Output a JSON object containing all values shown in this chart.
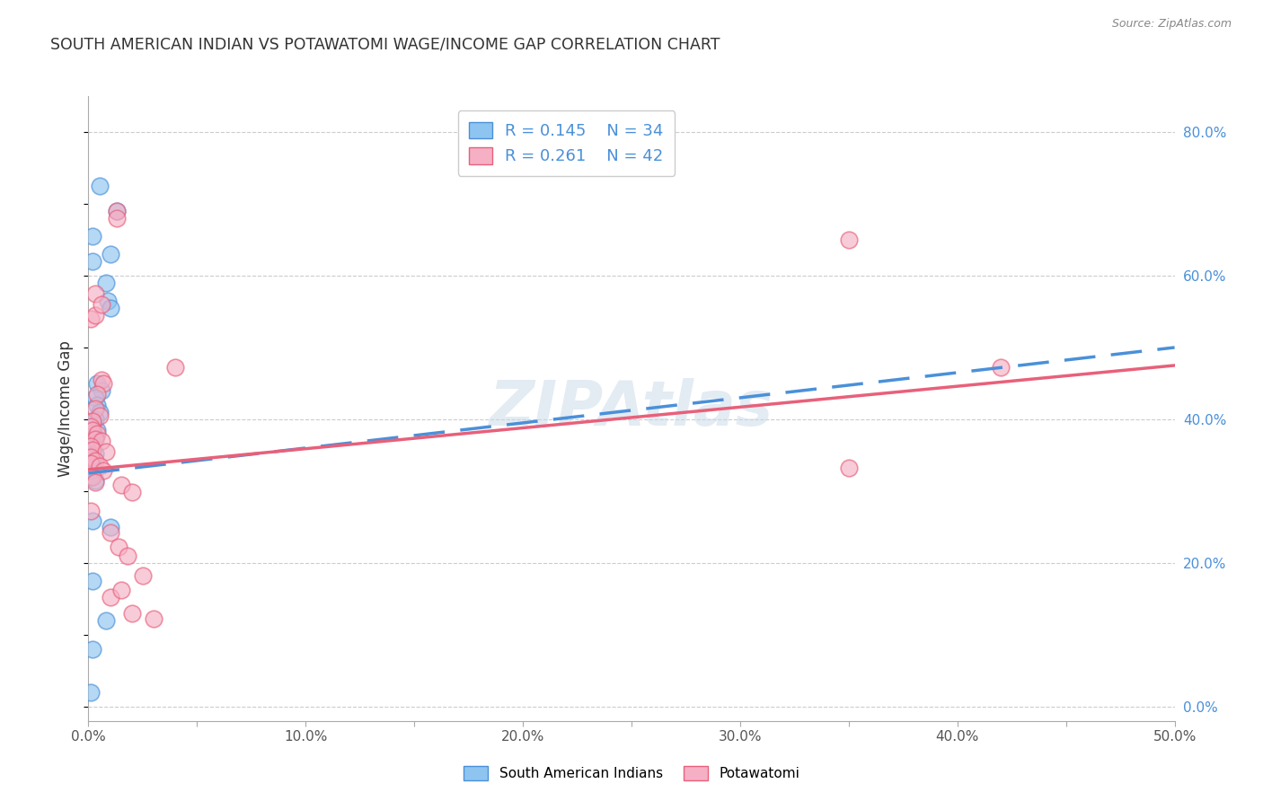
{
  "title": "SOUTH AMERICAN INDIAN VS POTAWATOMI WAGE/INCOME GAP CORRELATION CHART",
  "source": "Source: ZipAtlas.com",
  "ylabel": "Wage/Income Gap",
  "watermark": "ZIPAtlas",
  "blue_color": "#8ec4f0",
  "pink_color": "#f5b0c5",
  "blue_line_color": "#4a90d9",
  "pink_line_color": "#e8607a",
  "blue_scatter": [
    [
      0.002,
      0.655
    ],
    [
      0.005,
      0.725
    ],
    [
      0.01,
      0.63
    ],
    [
      0.013,
      0.69
    ],
    [
      0.002,
      0.62
    ],
    [
      0.008,
      0.59
    ],
    [
      0.009,
      0.565
    ],
    [
      0.01,
      0.555
    ],
    [
      0.004,
      0.45
    ],
    [
      0.006,
      0.44
    ],
    [
      0.003,
      0.43
    ],
    [
      0.004,
      0.42
    ],
    [
      0.005,
      0.41
    ],
    [
      0.003,
      0.4
    ],
    [
      0.002,
      0.395
    ],
    [
      0.004,
      0.385
    ],
    [
      0.002,
      0.38
    ],
    [
      0.003,
      0.375
    ],
    [
      0.001,
      0.37
    ],
    [
      0.002,
      0.365
    ],
    [
      0.001,
      0.358
    ],
    [
      0.003,
      0.352
    ],
    [
      0.002,
      0.345
    ],
    [
      0.001,
      0.34
    ],
    [
      0.002,
      0.333
    ],
    [
      0.001,
      0.328
    ],
    [
      0.001,
      0.32
    ],
    [
      0.003,
      0.315
    ],
    [
      0.002,
      0.258
    ],
    [
      0.01,
      0.25
    ],
    [
      0.002,
      0.175
    ],
    [
      0.008,
      0.12
    ],
    [
      0.002,
      0.08
    ],
    [
      0.001,
      0.02
    ]
  ],
  "pink_scatter": [
    [
      0.001,
      0.54
    ],
    [
      0.003,
      0.545
    ],
    [
      0.013,
      0.69
    ],
    [
      0.013,
      0.68
    ],
    [
      0.003,
      0.575
    ],
    [
      0.006,
      0.56
    ],
    [
      0.006,
      0.455
    ],
    [
      0.007,
      0.45
    ],
    [
      0.004,
      0.435
    ],
    [
      0.003,
      0.415
    ],
    [
      0.005,
      0.405
    ],
    [
      0.002,
      0.398
    ],
    [
      0.001,
      0.39
    ],
    [
      0.002,
      0.385
    ],
    [
      0.004,
      0.38
    ],
    [
      0.003,
      0.372
    ],
    [
      0.006,
      0.37
    ],
    [
      0.001,
      0.362
    ],
    [
      0.002,
      0.358
    ],
    [
      0.008,
      0.355
    ],
    [
      0.001,
      0.348
    ],
    [
      0.003,
      0.342
    ],
    [
      0.001,
      0.338
    ],
    [
      0.005,
      0.335
    ],
    [
      0.007,
      0.328
    ],
    [
      0.002,
      0.32
    ],
    [
      0.003,
      0.312
    ],
    [
      0.015,
      0.308
    ],
    [
      0.02,
      0.298
    ],
    [
      0.001,
      0.272
    ],
    [
      0.01,
      0.242
    ],
    [
      0.014,
      0.222
    ],
    [
      0.018,
      0.21
    ],
    [
      0.025,
      0.182
    ],
    [
      0.35,
      0.65
    ],
    [
      0.04,
      0.472
    ],
    [
      0.01,
      0.152
    ],
    [
      0.02,
      0.13
    ],
    [
      0.03,
      0.122
    ],
    [
      0.015,
      0.162
    ],
    [
      0.42,
      0.472
    ],
    [
      0.35,
      0.332
    ]
  ],
  "blue_R": 0.145,
  "pink_R": 0.261,
  "blue_N": 34,
  "pink_N": 42,
  "xlim": [
    0.0,
    0.5
  ],
  "ylim": [
    -0.02,
    0.85
  ],
  "xticks": [
    0.0,
    0.05,
    0.1,
    0.15,
    0.2,
    0.25,
    0.3,
    0.35,
    0.4,
    0.45,
    0.5
  ],
  "xtick_labels_show": [
    true,
    false,
    true,
    false,
    true,
    false,
    true,
    false,
    true,
    false,
    true
  ],
  "right_yticks": [
    0.0,
    0.2,
    0.4,
    0.6,
    0.8
  ],
  "right_ytick_labels": [
    "0.0%",
    "20.0%",
    "40.0%",
    "60.0%",
    "80.0%"
  ]
}
